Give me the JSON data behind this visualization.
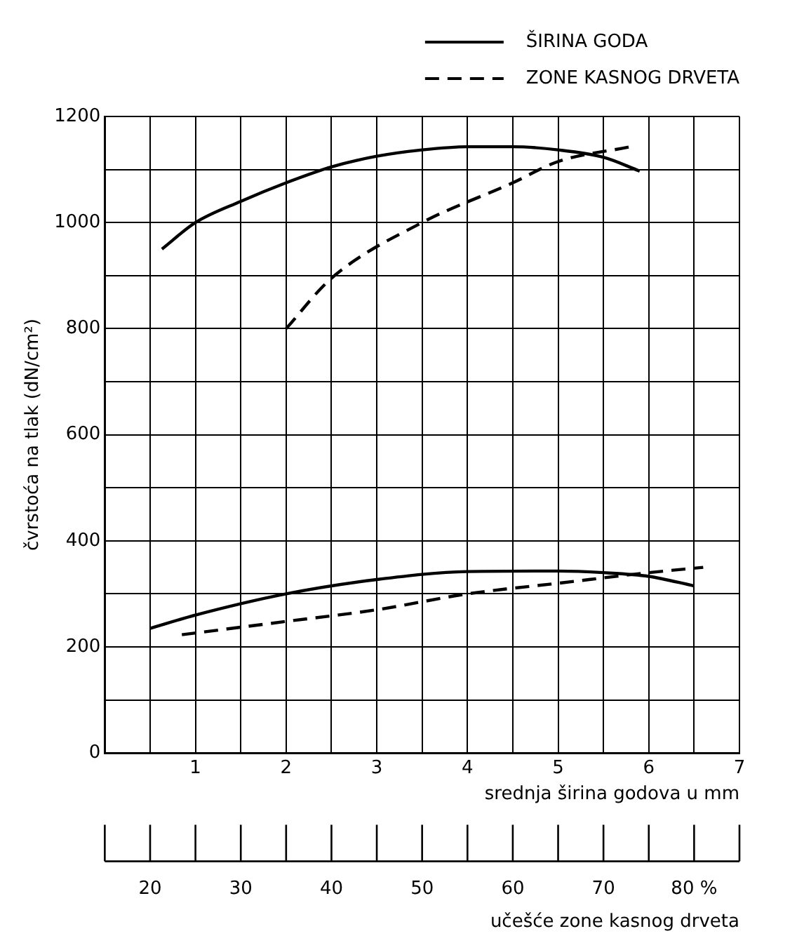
{
  "chart_data": {
    "type": "line",
    "xlabel": "srednja širina godova u mm",
    "x2label": "učešće zone kasnog drveta",
    "ylabel": "čvrstoća na tlak (dN/cm²)",
    "xlim": [
      0,
      7
    ],
    "xticks": [
      {
        "value": 0,
        "label": null
      },
      {
        "value": 0.5,
        "label": null
      },
      1,
      {
        "value": 1.5,
        "label": null
      },
      2,
      {
        "value": 2.5,
        "label": null
      },
      3,
      {
        "value": 3.5,
        "label": null
      },
      4,
      {
        "value": 4.5,
        "label": null
      },
      5,
      {
        "value": 5.5,
        "label": null
      },
      6,
      {
        "value": 6.5,
        "label": null
      },
      7
    ],
    "x2lim": [
      15,
      85
    ],
    "x2ticks": [
      {
        "value": 15,
        "label": null
      },
      20,
      {
        "value": 25,
        "label": null
      },
      30,
      {
        "value": 35,
        "label": null
      },
      40,
      {
        "value": 45,
        "label": null
      },
      50,
      {
        "value": 55,
        "label": null
      },
      60,
      {
        "value": 65,
        "label": null
      },
      70,
      {
        "value": 75,
        "label": null
      },
      {
        "value": 80,
        "label": "80 %"
      },
      {
        "value": 85,
        "label": null
      }
    ],
    "ylim": [
      0,
      1200
    ],
    "yticks": [
      0,
      {
        "value": 100,
        "label": null
      },
      200,
      {
        "value": 300,
        "label": null
      },
      400,
      {
        "value": 500,
        "label": null
      },
      600,
      {
        "value": 700,
        "label": null
      },
      800,
      {
        "value": 900,
        "label": null
      },
      1000,
      {
        "value": 1100,
        "label": null
      },
      1200
    ],
    "grid": true,
    "legend": "top right",
    "marker": "none",
    "series": [
      {
        "name": "ŠIRINA GODA",
        "color": "#000000",
        "line_style": "solid",
        "x": [
          0.63,
          1.0,
          1.5,
          2.0,
          2.5,
          3.0,
          3.5,
          4.0,
          4.5,
          5.0,
          5.5,
          5.9
        ],
        "values": [
          950,
          1000,
          1040,
          1075,
          1105,
          1125,
          1137,
          1143,
          1143,
          1137,
          1123,
          1097
        ]
      },
      {
        "name": "ZONE KASNOG DRVETA",
        "color": "#000000",
        "line_style": "dashed",
        "axis": "x2",
        "x": [
          35,
          40,
          50,
          60,
          65,
          73
        ],
        "values": [
          800,
          895,
          1000,
          1075,
          1115,
          1143
        ]
      },
      {
        "color": "#000000",
        "line_style": "solid",
        "x": [
          0.5,
          1.0,
          2.0,
          3.0,
          4.0,
          5.0,
          5.5,
          6.0,
          6.5
        ],
        "values": [
          235,
          260,
          300,
          327,
          342,
          343,
          340,
          333,
          315
        ]
      },
      {
        "color": "#000000",
        "line_style": "dashed",
        "axis": "x2",
        "x": [
          23.5,
          35,
          45,
          55,
          65,
          75,
          81
        ],
        "values": [
          223,
          248,
          270,
          300,
          320,
          340,
          350
        ]
      }
    ]
  }
}
